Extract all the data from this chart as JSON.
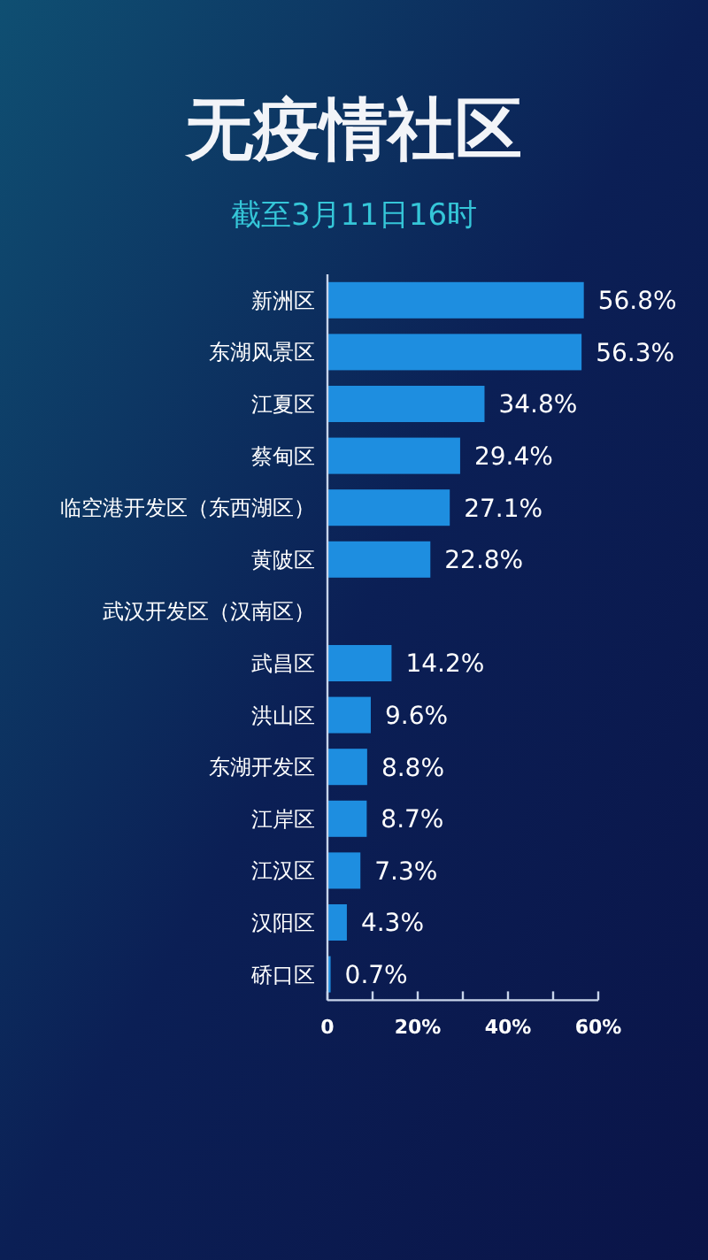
{
  "chart_data": {
    "type": "bar",
    "orientation": "horizontal",
    "title": "无疫情社区",
    "subtitle": "截至3月11日16时",
    "categories": [
      "新洲区",
      "东湖风景区",
      "江夏区",
      "蔡甸区",
      "临空港开发区（东西湖区）",
      "黄陂区",
      "武汉开发区（汉南区）",
      "武昌区",
      "洪山区",
      "东湖开发区",
      "江岸区",
      "江汉区",
      "汉阳区",
      "硚口区"
    ],
    "values": [
      56.8,
      56.3,
      34.8,
      29.4,
      27.1,
      22.8,
      null,
      14.2,
      9.6,
      8.8,
      8.7,
      7.3,
      4.3,
      0.7
    ],
    "value_labels": [
      "56.8%",
      "56.3%",
      "34.8%",
      "29.4%",
      "27.1%",
      "22.8%",
      null,
      "14.2%",
      "9.6%",
      "8.8%",
      "8.7%",
      "7.3%",
      "4.3%",
      "0.7%"
    ],
    "color": "#1e8ee0",
    "xlim": [
      0,
      60
    ],
    "xticks": [
      0,
      {
        "value": 10,
        "label": null
      },
      {
        "value": 20,
        "label": "20%"
      },
      {
        "value": 30,
        "label": null
      },
      {
        "value": 40,
        "label": "40%"
      },
      {
        "value": 50,
        "label": null
      },
      {
        "value": 60,
        "label": "60%"
      }
    ],
    "grid": false
  }
}
